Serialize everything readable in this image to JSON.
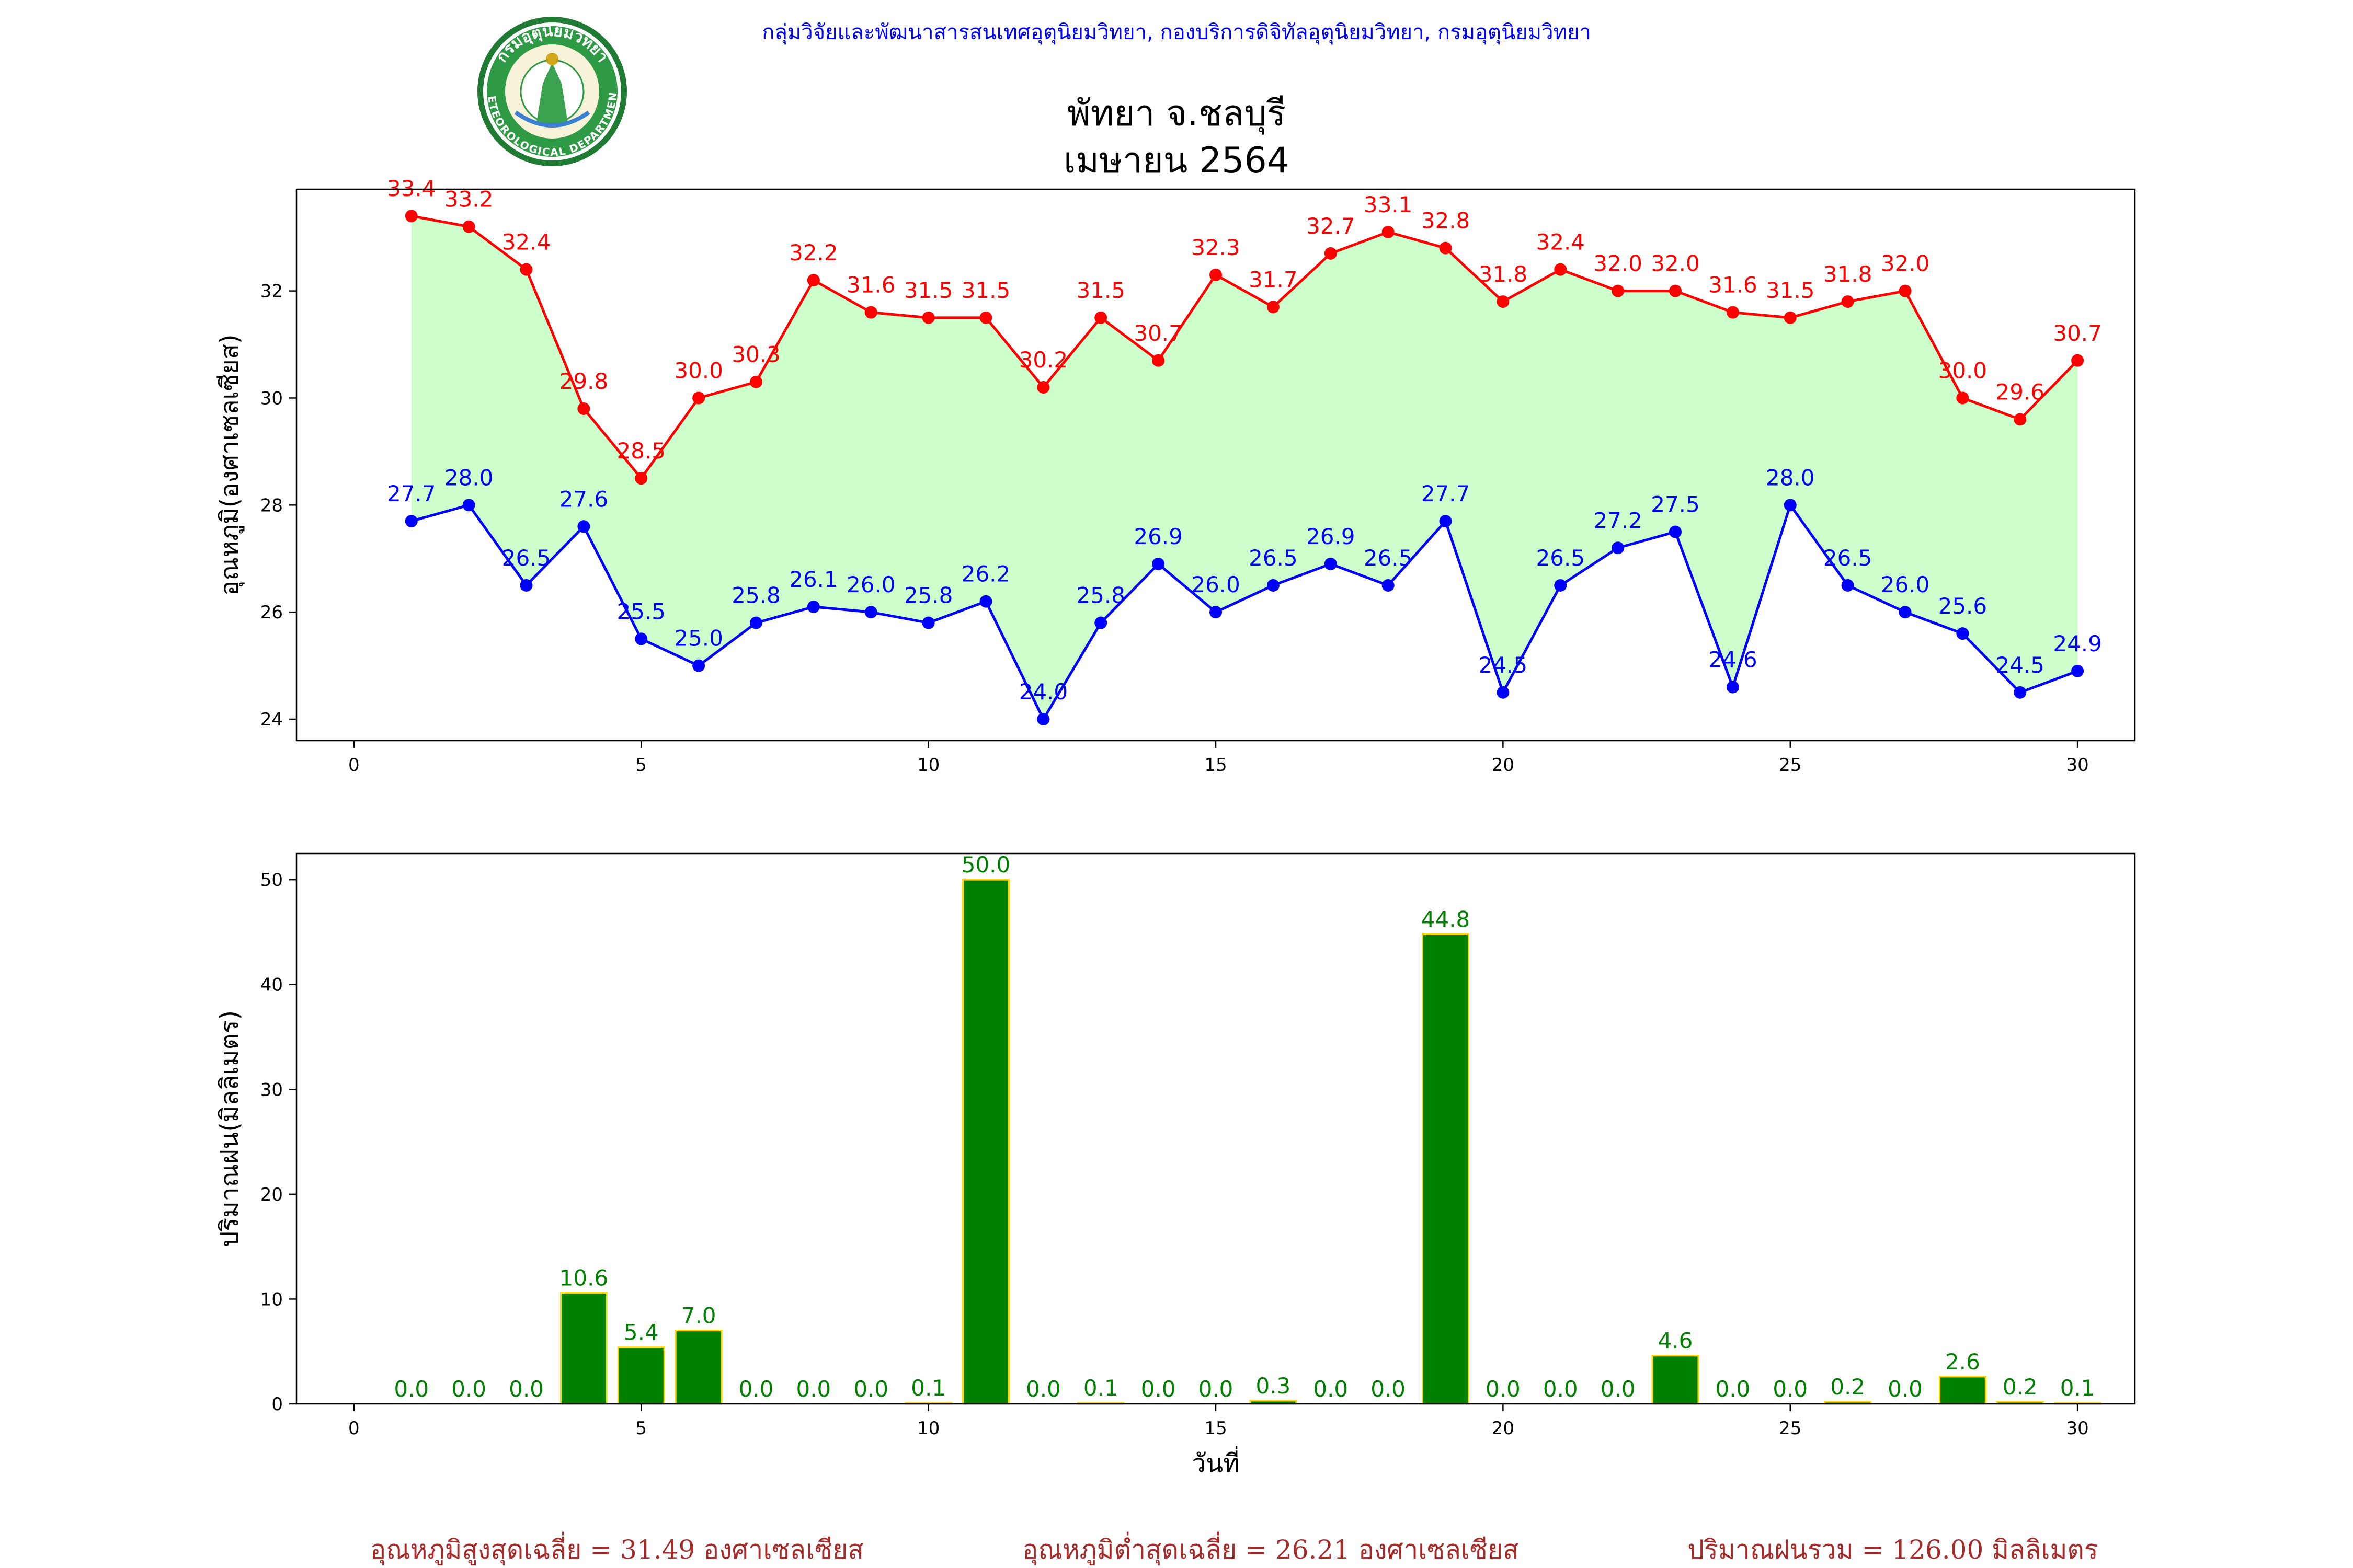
{
  "header": {
    "credit": "กลุ่มวิจัยและพัฒนาสารสนเทศอุตุนิยมวิทยา, กองบริการดิจิทัลอุตุนิยมวิทยา, กรมอุตุนิยมวิทยา",
    "logo_text_top": "กรมอุตุนิยมวิทยา",
    "logo_text_bottom": "METEOROLOGICAL DEPARTMENT",
    "title_line1": "พัทยา จ.ชลบุรี",
    "title_line2": "เมษายน 2564"
  },
  "colors": {
    "max_line": "#ff0000",
    "min_line": "#0000ff",
    "fill": "#ccffcc",
    "bar_fill": "#008000",
    "bar_edge": "#ffd700",
    "bar_label": "#008000",
    "credit": "#0000ff",
    "summary": "#a52a2a"
  },
  "chart_data": [
    {
      "type": "line",
      "ylabel": "อุณหภูมิ(องศาเซลเซียส)",
      "xlabel": "",
      "xlim": [
        -1,
        31
      ],
      "ylim": [
        23.6,
        33.9
      ],
      "xticks": [
        0,
        5,
        10,
        15,
        20,
        25,
        30
      ],
      "yticks": [
        24,
        26,
        28,
        30,
        32
      ],
      "x": [
        1,
        2,
        3,
        4,
        5,
        6,
        7,
        8,
        9,
        10,
        11,
        12,
        13,
        14,
        15,
        16,
        17,
        18,
        19,
        20,
        21,
        22,
        23,
        24,
        25,
        26,
        27,
        28,
        29,
        30
      ],
      "fill_between": true,
      "series": [
        {
          "values": [
            33.4,
            33.2,
            32.4,
            29.8,
            28.5,
            30.0,
            30.3,
            32.2,
            31.6,
            31.5,
            31.5,
            30.2,
            31.5,
            30.7,
            32.3,
            31.7,
            32.7,
            33.1,
            32.8,
            31.8,
            32.4,
            32.0,
            32.0,
            31.6,
            31.5,
            31.8,
            32.0,
            30.0,
            29.6,
            30.7
          ],
          "labels": [
            "33.4",
            "33.2",
            "32.4",
            "29.8",
            "28.5",
            "30.0",
            "30.3",
            "32.2",
            "31.6",
            "31.5",
            "31.5",
            "30.2",
            "31.5",
            "30.7",
            "32.3",
            "31.7",
            "32.7",
            "33.1",
            "32.8",
            "31.8",
            "32.4",
            "32.0",
            "32.0",
            "31.6",
            "31.5",
            "31.8",
            "32.0",
            "30.0",
            "29.6",
            "30.7"
          ]
        },
        {
          "values": [
            27.7,
            28.0,
            26.5,
            27.6,
            25.5,
            25.0,
            25.8,
            26.1,
            26.0,
            25.8,
            26.2,
            24.0,
            25.8,
            26.9,
            26.0,
            26.5,
            26.9,
            26.5,
            27.7,
            24.5,
            26.5,
            27.2,
            27.5,
            24.6,
            28.0,
            26.5,
            26.0,
            25.6,
            24.5,
            24.9
          ],
          "labels": [
            "27.7",
            "28.0",
            "26.5",
            "27.6",
            "25.5",
            "25.0",
            "25.8",
            "26.1",
            "26.0",
            "25.8",
            "26.2",
            "24.0",
            "25.8",
            "26.9",
            "26.0",
            "26.5",
            "26.9",
            "26.5",
            "27.7",
            "24.5",
            "26.5",
            "27.2",
            "27.5",
            "24.6",
            "28.0",
            "26.5",
            "26.0",
            "25.6",
            "24.5",
            "24.9"
          ]
        }
      ]
    },
    {
      "type": "bar",
      "ylabel": "ปริมาณฝน(มิลลิเมตร)",
      "xlabel": "วันที่",
      "xlim": [
        -1,
        31
      ],
      "ylim": [
        0,
        52.5
      ],
      "xticks": [
        0,
        5,
        10,
        15,
        20,
        25,
        30
      ],
      "yticks": [
        0,
        10,
        20,
        30,
        40,
        50
      ],
      "categories": [
        1,
        2,
        3,
        4,
        5,
        6,
        7,
        8,
        9,
        10,
        11,
        12,
        13,
        14,
        15,
        16,
        17,
        18,
        19,
        20,
        21,
        22,
        23,
        24,
        25,
        26,
        27,
        28,
        29,
        30
      ],
      "values": [
        0.0,
        0.0,
        0.0,
        10.6,
        5.4,
        7.0,
        0.0,
        0.0,
        0.0,
        0.1,
        50.0,
        0.0,
        0.1,
        0.0,
        0.0,
        0.3,
        0.0,
        0.0,
        44.8,
        0.0,
        0.0,
        0.0,
        4.6,
        0.0,
        0.0,
        0.2,
        0.0,
        2.6,
        0.2,
        0.1
      ],
      "labels": [
        "0.0",
        "0.0",
        "0.0",
        "10.6",
        "5.4",
        "7.0",
        "0.0",
        "0.0",
        "0.0",
        "0.1",
        "50.0",
        "0.0",
        "0.1",
        "0.0",
        "0.0",
        "0.3",
        "0.0",
        "0.0",
        "44.8",
        "0.0",
        "0.0",
        "0.0",
        "4.6",
        "0.0",
        "0.0",
        "0.2",
        "0.0",
        "2.6",
        "0.2",
        "0.1"
      ]
    }
  ],
  "summary": {
    "avg_max": "อุณหภูมิสูงสุดเฉลี่ย = 31.49 องศาเซลเซียส",
    "avg_min": "อุณหภูมิต่ำสุดเฉลี่ย = 26.21 องศาเซลเซียส",
    "total_rain": "ปริมาณฝนรวม = 126.00 มิลลิเมตร"
  }
}
